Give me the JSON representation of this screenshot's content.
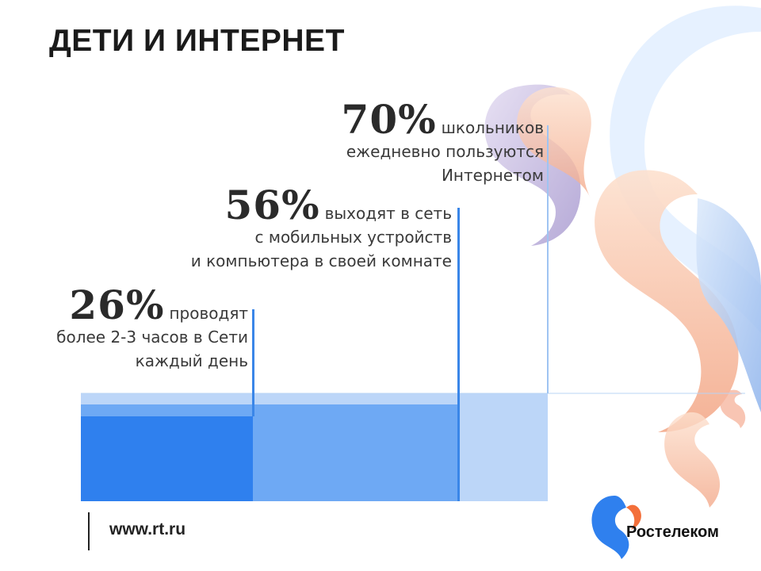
{
  "title": "ДЕТИ И ИНТЕРНЕТ",
  "stats": [
    {
      "percent": "70%",
      "lead": "школьников",
      "rest": [
        "ежедневно пользуются",
        "Интернетом"
      ],
      "value": 70,
      "color": "#b9d5f7"
    },
    {
      "percent": "56%",
      "lead": "выходят в сеть",
      "rest": [
        "с мобильных устройств",
        "и компьютера в своей комнате"
      ],
      "value": 56,
      "color": "#6aa8f3"
    },
    {
      "percent": "26%",
      "lead": "проводят",
      "rest": [
        "более 2-3 часов в Сети",
        "каждый день"
      ],
      "value": 26,
      "color": "#2f80ee"
    }
  ],
  "footer": {
    "url": "www.rt.ru"
  },
  "logo": {
    "name": "Ростелеком",
    "icon": "rostelecom-logo-icon"
  },
  "colors": {
    "accent": "#3a86e8",
    "title": "#1a1a1a"
  }
}
